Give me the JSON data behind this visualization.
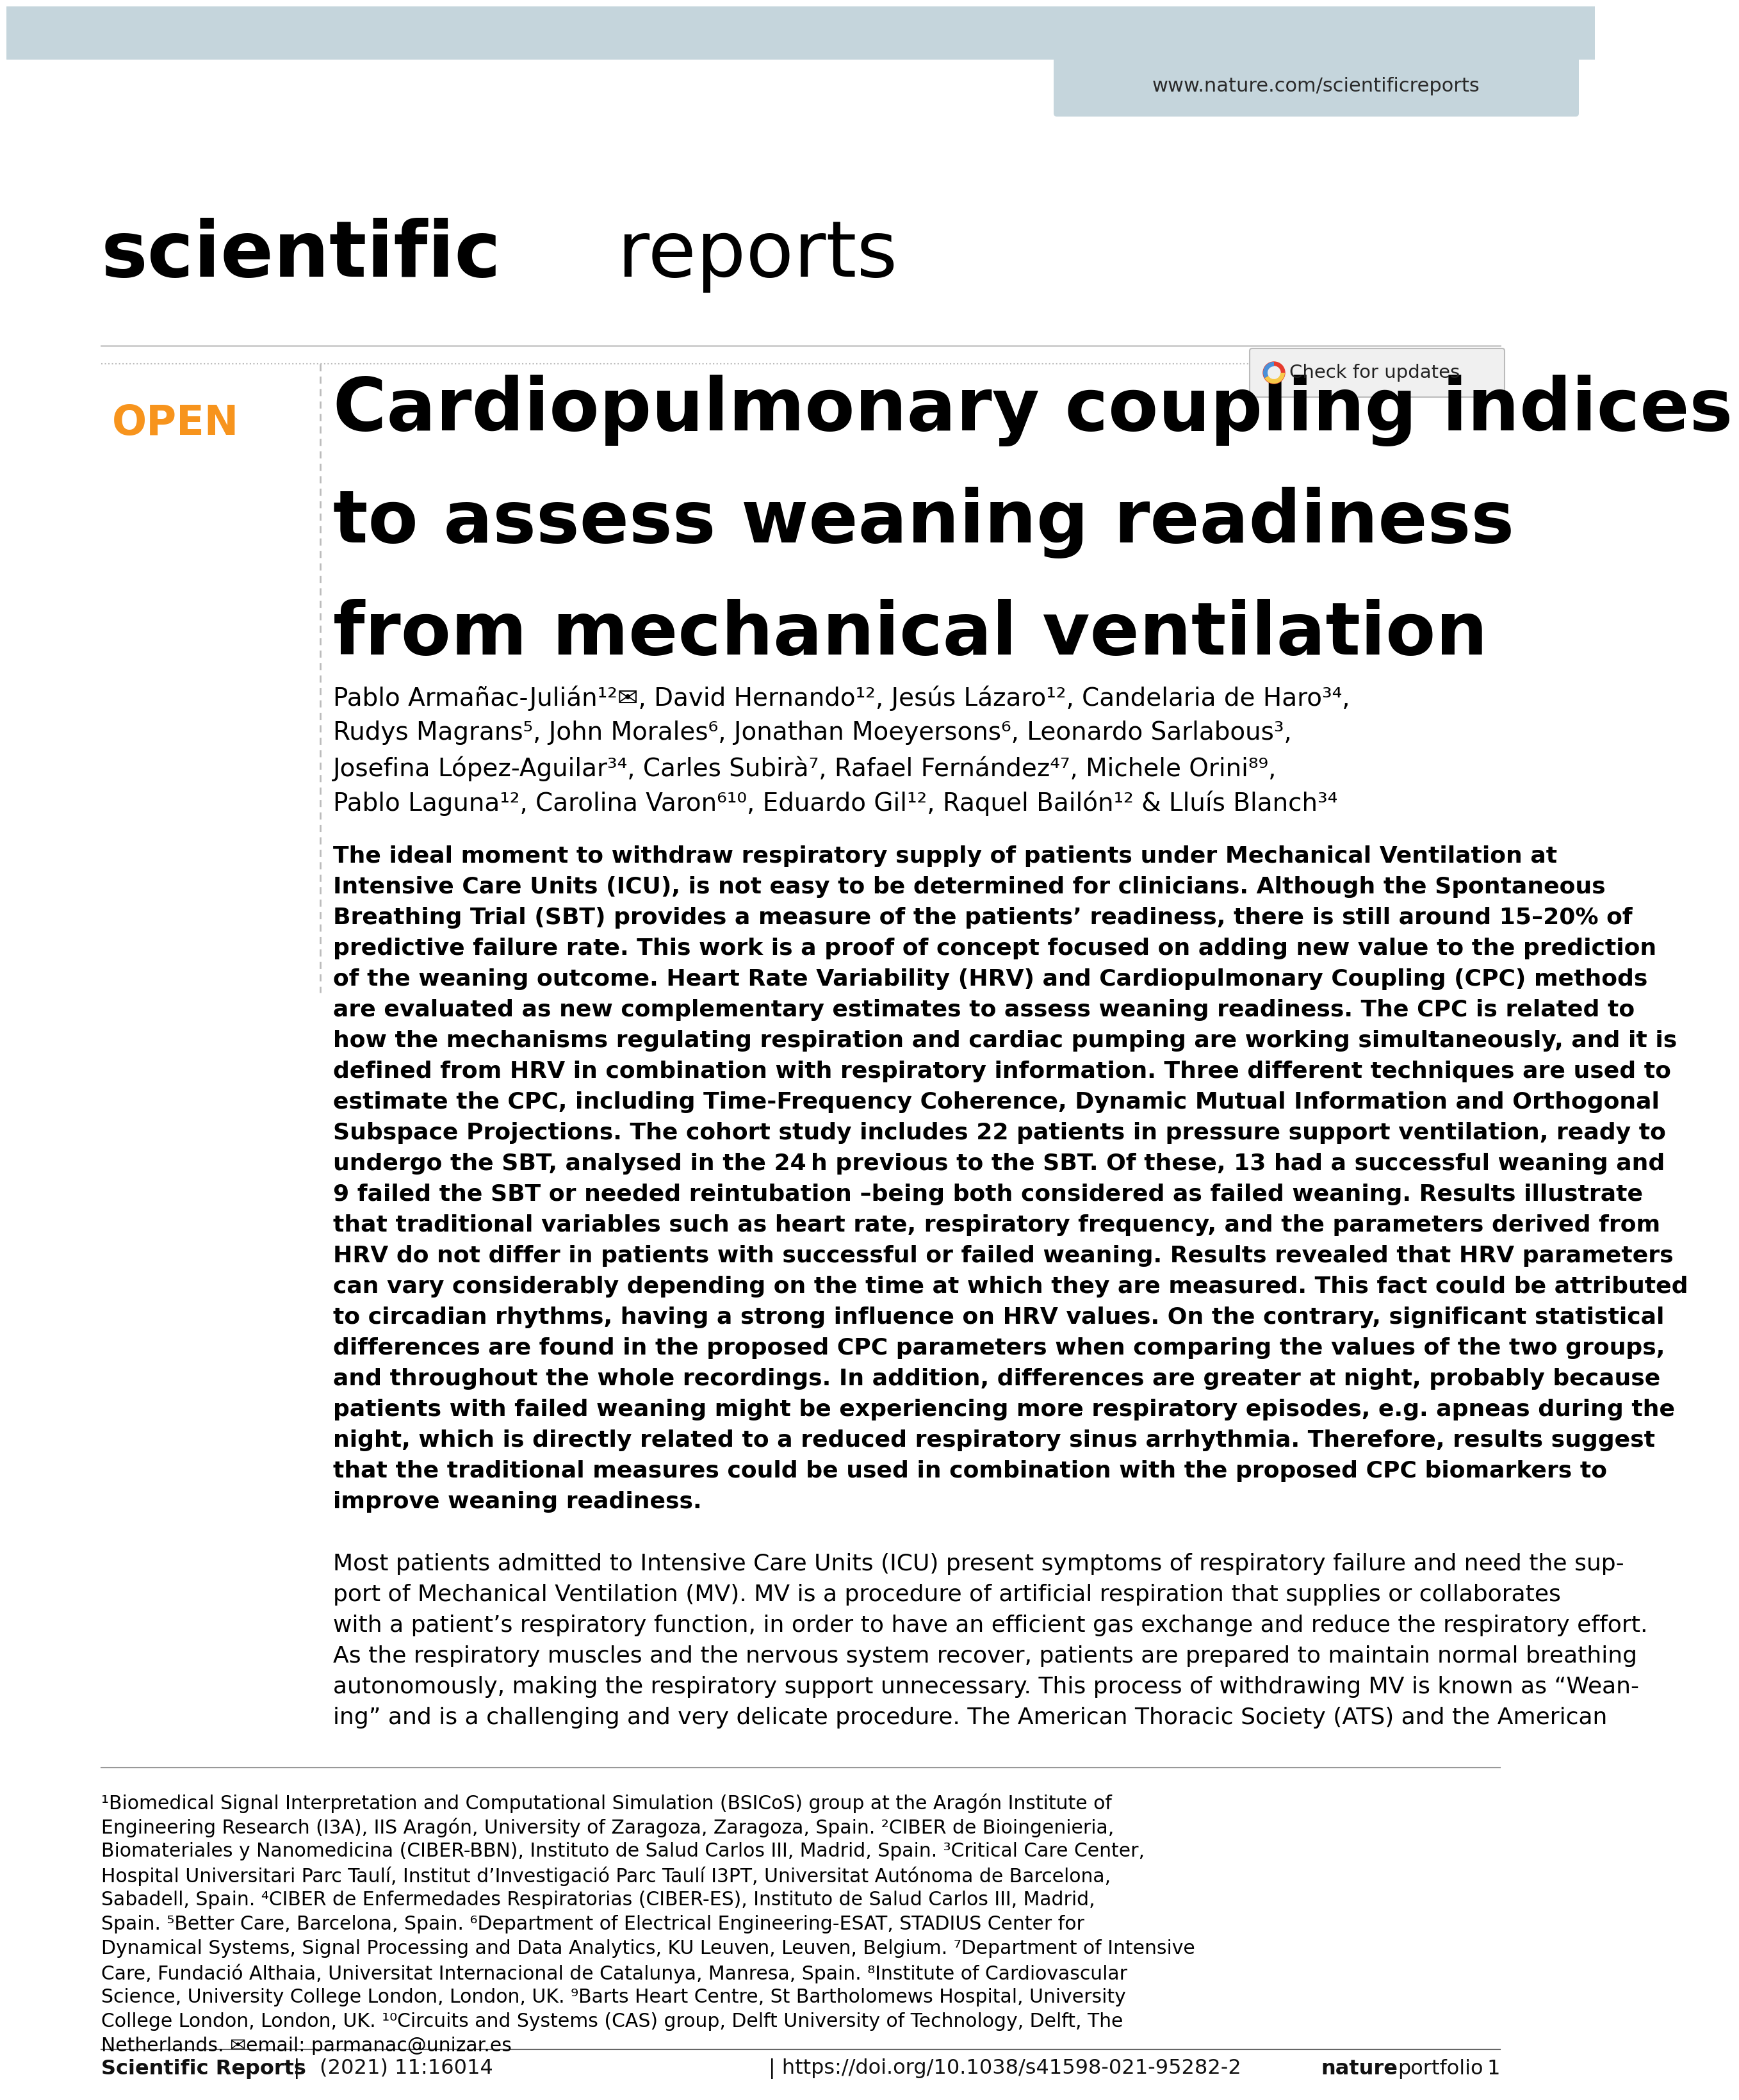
{
  "background_color": "#ffffff",
  "header_bar_color": "#c5d5dc",
  "header_url": "www.nature.com/scientificreports",
  "open_color": "#f7941d",
  "title_line1": "Cardiopulmonary coupling indices",
  "title_line2": "to assess weaning readiness",
  "title_line3": "from mechanical ventilation",
  "authors_line1": "Pablo Armañac-Julián¹²✉, David Hernando¹², Jesús Lázaro¹², Candelaria de Haro³⁴,",
  "authors_line2": "Rudys Magrans⁵, John Morales⁶, Jonathan Moeyersons⁶, Leonardo Sarlabous³,",
  "authors_line3": "Josefina López-Aguilar³⁴, Carles Subirà⁷, Rafael Fernández⁴⁷, Michele Orini⁸⁹,",
  "authors_line4": "Pablo Laguna¹², Carolina Varon⁶¹⁰, Eduardo Gil¹², Raquel Bailón¹² & Lluís Blanch³⁴",
  "abstract_lines": [
    "The ideal moment to withdraw respiratory supply of patients under Mechanical Ventilation at",
    "Intensive Care Units (ICU), is not easy to be determined for clinicians. Although the Spontaneous",
    "Breathing Trial (SBT) provides a measure of the patients’ readiness, there is still around 15–20% of",
    "predictive failure rate. This work is a proof of concept focused on adding new value to the prediction",
    "of the weaning outcome. Heart Rate Variability (HRV) and Cardiopulmonary Coupling (CPC) methods",
    "are evaluated as new complementary estimates to assess weaning readiness. The CPC is related to",
    "how the mechanisms regulating respiration and cardiac pumping are working simultaneously, and it is",
    "defined from HRV in combination with respiratory information. Three different techniques are used to",
    "estimate the CPC, including Time-Frequency Coherence, Dynamic Mutual Information and Orthogonal",
    "Subspace Projections. The cohort study includes 22 patients in pressure support ventilation, ready to",
    "undergo the SBT, analysed in the 24 h previous to the SBT. Of these, 13 had a successful weaning and",
    "9 failed the SBT or needed reintubation –being both considered as failed weaning. Results illustrate",
    "that traditional variables such as heart rate, respiratory frequency, and the parameters derived from",
    "HRV do not differ in patients with successful or failed weaning. Results revealed that HRV parameters",
    "can vary considerably depending on the time at which they are measured. This fact could be attributed",
    "to circadian rhythms, having a strong influence on HRV values. On the contrary, significant statistical",
    "differences are found in the proposed CPC parameters when comparing the values of the two groups,",
    "and throughout the whole recordings. In addition, differences are greater at night, probably because",
    "patients with failed weaning might be experiencing more respiratory episodes, e.g. apneas during the",
    "night, which is directly related to a reduced respiratory sinus arrhythmia. Therefore, results suggest",
    "that the traditional measures could be used in combination with the proposed CPC biomarkers to",
    "improve weaning readiness."
  ],
  "intro_lines": [
    "Most patients admitted to Intensive Care Units (ICU) present symptoms of respiratory failure and need the sup-",
    "port of Mechanical Ventilation (MV). MV is a procedure of artificial respiration that supplies or collaborates",
    "with a patient’s respiratory function, in order to have an efficient gas exchange and reduce the respiratory effort.",
    "As the respiratory muscles and the nervous system recover, patients are prepared to maintain normal breathing",
    "autonomously, making the respiratory support unnecessary. This process of withdrawing MV is known as “Wean-",
    "ing” and is a challenging and very delicate procedure. The American Thoracic Society (ATS) and the American"
  ],
  "affil_lines": [
    "¹Biomedical Signal Interpretation and Computational Simulation (BSICoS) group at the Aragón Institute of",
    "Engineering Research (I3A), IIS Aragón, University of Zaragoza, Zaragoza, Spain. ²CIBER de Bioingenieria,",
    "Biomateriales y Nanomedicina (CIBER-BBN), Instituto de Salud Carlos III, Madrid, Spain. ³Critical Care Center,",
    "Hospital Universitari Parc Taulí, Institut d’Investigació Parc Taulí I3PT, Universitat Autónoma de Barcelona,",
    "Sabadell, Spain. ⁴CIBER de Enfermedades Respiratorias (CIBER-ES), Instituto de Salud Carlos III, Madrid,",
    "Spain. ⁵Better Care, Barcelona, Spain. ⁶Department of Electrical Engineering-ESAT, STADIUS Center for",
    "Dynamical Systems, Signal Processing and Data Analytics, KU Leuven, Leuven, Belgium. ⁷Department of Intensive",
    "Care, Fundació Althaia, Universitat Internacional de Catalunya, Manresa, Spain. ⁸Institute of Cardiovascular",
    "Science, University College London, London, UK. ⁹Barts Heart Centre, St Bartholomews Hospital, University",
    "College London, London, UK. ¹⁰Circuits and Systems (CAS) group, Delft University of Technology, Delft, The",
    "Netherlands. ✉email: parmanac@unizar.es"
  ],
  "footer_left": "Scientific Reports",
  "footer_mid": "| https://doi.org/10.1038/s41598-021-95282-2",
  "footer_year": "(2021) 11:16014",
  "footer_right_bold": "nature",
  "footer_right_reg": "portfolio"
}
